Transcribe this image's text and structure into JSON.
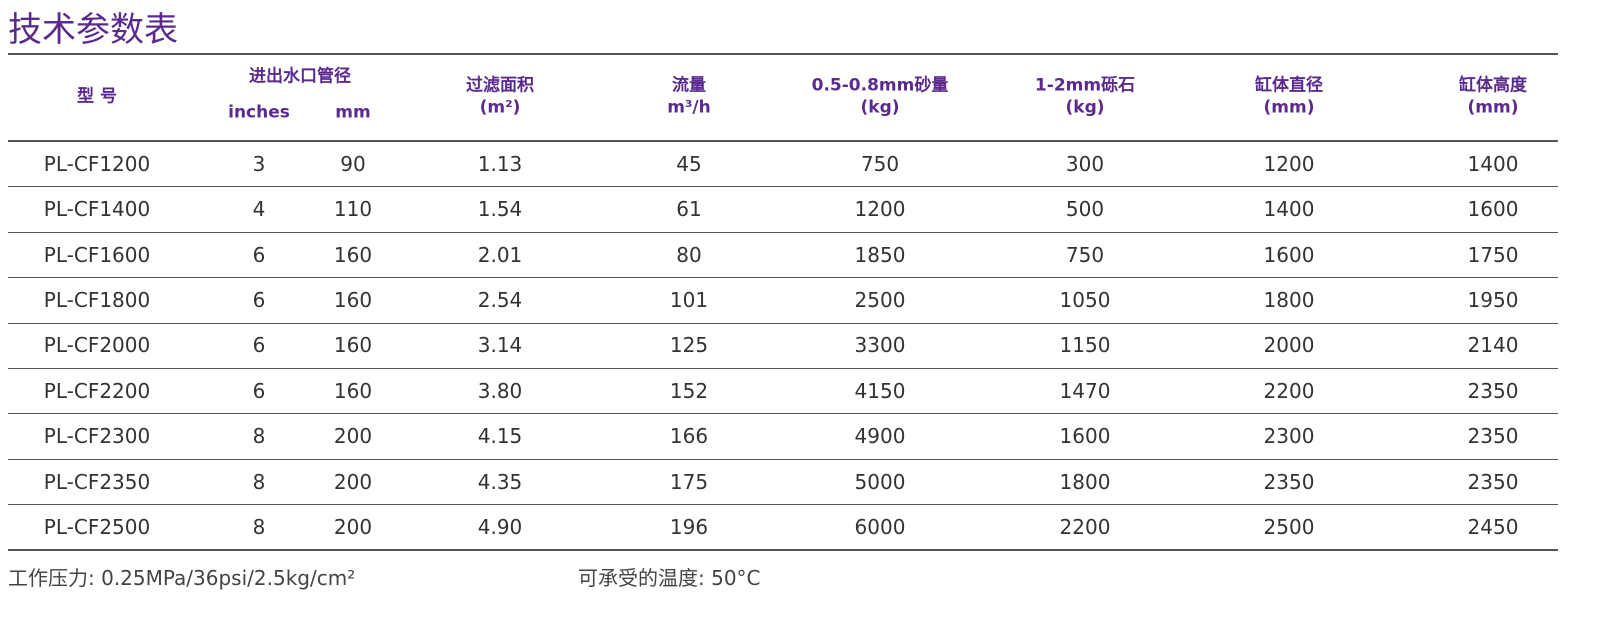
{
  "title": "技术参数表",
  "table": {
    "header": {
      "model": "型 号",
      "pipe": "进出水口管径",
      "pipe_units": [
        "inches",
        "mm"
      ],
      "columns": [
        [
          "过滤面积",
          "(m²)"
        ],
        [
          "流量",
          "m³/h"
        ],
        [
          "0.5-0.8mm砂量",
          "(kg)"
        ],
        [
          "1-2mm砾石",
          "(kg)"
        ],
        [
          "缸体直径",
          "(mm)"
        ],
        [
          "缸体高度",
          "(mm)"
        ]
      ]
    },
    "rows": [
      [
        "PL-CF1200",
        "3",
        "90",
        "1.13",
        "45",
        "750",
        "300",
        "1200",
        "1400"
      ],
      [
        "PL-CF1400",
        "4",
        "110",
        "1.54",
        "61",
        "1200",
        "500",
        "1400",
        "1600"
      ],
      [
        "PL-CF1600",
        "6",
        "160",
        "2.01",
        "80",
        "1850",
        "750",
        "1600",
        "1750"
      ],
      [
        "PL-CF1800",
        "6",
        "160",
        "2.54",
        "101",
        "2500",
        "1050",
        "1800",
        "1950"
      ],
      [
        "PL-CF2000",
        "6",
        "160",
        "3.14",
        "125",
        "3300",
        "1150",
        "2000",
        "2140"
      ],
      [
        "PL-CF2200",
        "6",
        "160",
        "3.80",
        "152",
        "4150",
        "1470",
        "2200",
        "2350"
      ],
      [
        "PL-CF2300",
        "8",
        "200",
        "4.15",
        "166",
        "4900",
        "1600",
        "2300",
        "2350"
      ],
      [
        "PL-CF2350",
        "8",
        "200",
        "4.35",
        "175",
        "5000",
        "1800",
        "2350",
        "2350"
      ],
      [
        "PL-CF2500",
        "8",
        "200",
        "4.90",
        "196",
        "6000",
        "2200",
        "2500",
        "2450"
      ]
    ]
  },
  "footer": {
    "pressure": "工作压力: 0.25MPa/36psi/2.5kg/cm²",
    "temperature": "可承受的温度: 50°C"
  }
}
